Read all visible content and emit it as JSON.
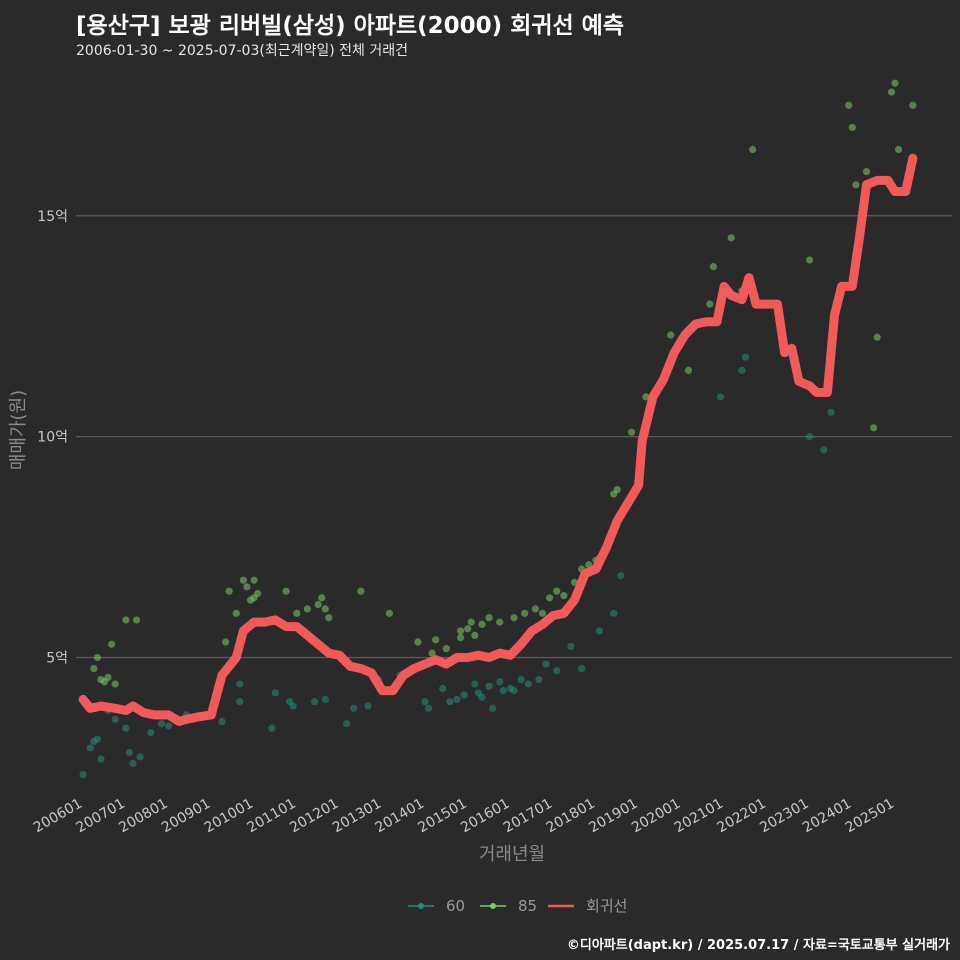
{
  "header": {
    "title": "[용산구] 보광 리버빌(삼성) 아파트(2000) 회귀선 예측",
    "subtitle": "2006-01-30 ~ 2025-07-03(최근계약일) 전체 거래건"
  },
  "caption": "©디아파트(dapt.kr) / 2025.07.17 / 자료=국토교통부 실거래가",
  "colors": {
    "background": "#2b2a2b",
    "grid": "#5a5a5a",
    "series_60": "#2a8a80",
    "series_85": "#7ec86a",
    "regression": "#f05a5a"
  },
  "chart_data": {
    "type": "scatter",
    "xlabel": "거래년월",
    "ylabel": "매매가(원)",
    "x_range": [
      "2006-01",
      "2025-07"
    ],
    "ylim": [
      2,
      18.3
    ],
    "y_ticks": [
      5,
      10,
      15
    ],
    "y_tick_labels": [
      "5억",
      "10억",
      "15억"
    ],
    "x_tick_labels": [
      "200601",
      "200701",
      "200801",
      "200901",
      "201001",
      "201101",
      "201201",
      "201301",
      "201401",
      "201501",
      "201601",
      "201701",
      "201801",
      "201901",
      "202001",
      "202101",
      "202201",
      "202301",
      "202401",
      "202501"
    ],
    "grid": true,
    "legend_position": "bottom",
    "legend": [
      {
        "key": "60",
        "label": "60"
      },
      {
        "key": "85",
        "label": "85"
      },
      {
        "key": "reg",
        "label": "회귀선"
      }
    ],
    "series": [
      {
        "name": "60",
        "points": [
          [
            "2006-01",
            2.35
          ],
          [
            "2006-03",
            2.95
          ],
          [
            "2006-04",
            3.1
          ],
          [
            "2006-05",
            3.15
          ],
          [
            "2006-06",
            2.7
          ],
          [
            "2006-08",
            3.8
          ],
          [
            "2006-10",
            3.6
          ],
          [
            "2007-01",
            3.4
          ],
          [
            "2007-02",
            2.85
          ],
          [
            "2007-03",
            2.6
          ],
          [
            "2007-05",
            2.75
          ],
          [
            "2007-08",
            3.3
          ],
          [
            "2007-11",
            3.5
          ],
          [
            "2008-01",
            3.45
          ],
          [
            "2008-03",
            3.6
          ],
          [
            "2008-06",
            3.7
          ],
          [
            "2009-04",
            3.55
          ],
          [
            "2009-09",
            4.4
          ],
          [
            "2009-09",
            4.0
          ],
          [
            "2010-06",
            3.4
          ],
          [
            "2010-07",
            4.2
          ],
          [
            "2010-11",
            4.0
          ],
          [
            "2010-12",
            3.9
          ],
          [
            "2011-06",
            4.0
          ],
          [
            "2011-09",
            4.05
          ],
          [
            "2012-03",
            3.5
          ],
          [
            "2012-05",
            3.85
          ],
          [
            "2012-09",
            3.9
          ],
          [
            "2012-12",
            4.5
          ],
          [
            "2013-06",
            4.6
          ],
          [
            "2014-01",
            4.0
          ],
          [
            "2014-02",
            3.85
          ],
          [
            "2014-06",
            4.3
          ],
          [
            "2014-08",
            4.0
          ],
          [
            "2014-10",
            4.05
          ],
          [
            "2014-12",
            4.15
          ],
          [
            "2015-03",
            4.4
          ],
          [
            "2015-04",
            4.2
          ],
          [
            "2015-05",
            4.1
          ],
          [
            "2015-07",
            4.35
          ],
          [
            "2015-08",
            3.85
          ],
          [
            "2015-10",
            4.45
          ],
          [
            "2015-11",
            4.25
          ],
          [
            "2016-01",
            4.3
          ],
          [
            "2016-02",
            4.25
          ],
          [
            "2016-04",
            4.5
          ],
          [
            "2016-06",
            4.4
          ],
          [
            "2016-09",
            4.5
          ],
          [
            "2016-11",
            4.85
          ],
          [
            "2017-02",
            4.7
          ],
          [
            "2017-06",
            5.25
          ],
          [
            "2017-09",
            4.75
          ],
          [
            "2018-02",
            5.6
          ],
          [
            "2018-06",
            6.0
          ],
          [
            "2018-08",
            6.85
          ],
          [
            "2020-12",
            10.9
          ],
          [
            "2021-06",
            11.5
          ],
          [
            "2021-07",
            11.8
          ],
          [
            "2023-01",
            10.0
          ],
          [
            "2023-05",
            9.7
          ],
          [
            "2023-07",
            10.55
          ]
        ]
      },
      {
        "name": "85",
        "points": [
          [
            "2006-04",
            4.75
          ],
          [
            "2006-05",
            5.0
          ],
          [
            "2006-06",
            4.5
          ],
          [
            "2006-07",
            4.45
          ],
          [
            "2006-08",
            4.55
          ],
          [
            "2006-09",
            5.3
          ],
          [
            "2006-10",
            4.4
          ],
          [
            "2007-01",
            5.85
          ],
          [
            "2007-04",
            5.85
          ],
          [
            "2009-05",
            5.35
          ],
          [
            "2009-06",
            6.5
          ],
          [
            "2009-08",
            6.0
          ],
          [
            "2009-10",
            6.75
          ],
          [
            "2009-11",
            6.6
          ],
          [
            "2009-12",
            6.3
          ],
          [
            "2010-01",
            6.75
          ],
          [
            "2010-01",
            6.35
          ],
          [
            "2010-02",
            6.45
          ],
          [
            "2010-10",
            6.5
          ],
          [
            "2011-01",
            6.0
          ],
          [
            "2011-04",
            6.1
          ],
          [
            "2011-07",
            6.2
          ],
          [
            "2011-08",
            6.35
          ],
          [
            "2011-09",
            6.1
          ],
          [
            "2011-10",
            5.9
          ],
          [
            "2012-07",
            6.5
          ],
          [
            "2013-03",
            6.0
          ],
          [
            "2013-11",
            5.35
          ],
          [
            "2014-03",
            5.1
          ],
          [
            "2014-04",
            5.4
          ],
          [
            "2014-07",
            5.2
          ],
          [
            "2014-11",
            5.6
          ],
          [
            "2014-11",
            5.45
          ],
          [
            "2015-01",
            5.65
          ],
          [
            "2015-02",
            5.8
          ],
          [
            "2015-03",
            5.5
          ],
          [
            "2015-05",
            5.75
          ],
          [
            "2015-07",
            5.9
          ],
          [
            "2015-10",
            5.8
          ],
          [
            "2016-02",
            5.9
          ],
          [
            "2016-05",
            6.0
          ],
          [
            "2016-08",
            6.1
          ],
          [
            "2016-10",
            6.0
          ],
          [
            "2016-12",
            6.35
          ],
          [
            "2017-02",
            6.5
          ],
          [
            "2017-04",
            6.4
          ],
          [
            "2017-07",
            6.7
          ],
          [
            "2017-09",
            7.0
          ],
          [
            "2017-11",
            7.1
          ],
          [
            "2018-01",
            7.2
          ],
          [
            "2018-02",
            7.25
          ],
          [
            "2018-06",
            8.7
          ],
          [
            "2018-07",
            8.8
          ],
          [
            "2018-11",
            10.1
          ],
          [
            "2019-03",
            10.9
          ],
          [
            "2019-10",
            12.3
          ],
          [
            "2020-03",
            11.5
          ],
          [
            "2020-04",
            12.5
          ],
          [
            "2020-09",
            13.0
          ],
          [
            "2020-10",
            13.85
          ],
          [
            "2021-03",
            14.5
          ],
          [
            "2021-06",
            13.3
          ],
          [
            "2021-09",
            16.5
          ],
          [
            "2022-07",
            12.0
          ],
          [
            "2023-01",
            14.0
          ],
          [
            "2023-12",
            17.5
          ],
          [
            "2024-01",
            17.0
          ],
          [
            "2024-02",
            15.7
          ],
          [
            "2024-05",
            16.0
          ],
          [
            "2024-07",
            10.2
          ],
          [
            "2024-08",
            12.25
          ],
          [
            "2024-12",
            17.8
          ],
          [
            "2025-01",
            18.0
          ],
          [
            "2025-02",
            16.5
          ],
          [
            "2025-06",
            17.5
          ]
        ]
      },
      {
        "name": "회귀선",
        "points": [
          [
            "2006-01",
            4.05
          ],
          [
            "2006-03",
            3.85
          ],
          [
            "2006-06",
            3.9
          ],
          [
            "2006-10",
            3.85
          ],
          [
            "2007-01",
            3.8
          ],
          [
            "2007-03",
            3.9
          ],
          [
            "2007-06",
            3.75
          ],
          [
            "2007-09",
            3.7
          ],
          [
            "2008-01",
            3.7
          ],
          [
            "2008-04",
            3.55
          ],
          [
            "2008-06",
            3.6
          ],
          [
            "2008-09",
            3.65
          ],
          [
            "2009-01",
            3.7
          ],
          [
            "2009-04",
            4.6
          ],
          [
            "2009-08",
            5.0
          ],
          [
            "2009-10",
            5.6
          ],
          [
            "2010-01",
            5.8
          ],
          [
            "2010-04",
            5.8
          ],
          [
            "2010-07",
            5.85
          ],
          [
            "2010-10",
            5.7
          ],
          [
            "2011-01",
            5.7
          ],
          [
            "2011-04",
            5.5
          ],
          [
            "2011-07",
            5.3
          ],
          [
            "2011-10",
            5.1
          ],
          [
            "2012-01",
            5.05
          ],
          [
            "2012-04",
            4.8
          ],
          [
            "2012-07",
            4.75
          ],
          [
            "2012-10",
            4.65
          ],
          [
            "2013-01",
            4.25
          ],
          [
            "2013-04",
            4.25
          ],
          [
            "2013-07",
            4.6
          ],
          [
            "2013-10",
            4.75
          ],
          [
            "2014-01",
            4.85
          ],
          [
            "2014-04",
            4.95
          ],
          [
            "2014-07",
            4.85
          ],
          [
            "2014-10",
            5.0
          ],
          [
            "2015-01",
            5.0
          ],
          [
            "2015-04",
            5.05
          ],
          [
            "2015-07",
            5.0
          ],
          [
            "2015-10",
            5.1
          ],
          [
            "2016-01",
            5.05
          ],
          [
            "2016-04",
            5.3
          ],
          [
            "2016-07",
            5.6
          ],
          [
            "2016-10",
            5.75
          ],
          [
            "2017-01",
            5.95
          ],
          [
            "2017-04",
            6.0
          ],
          [
            "2017-07",
            6.3
          ],
          [
            "2017-10",
            6.9
          ],
          [
            "2018-01",
            7.0
          ],
          [
            "2018-04",
            7.5
          ],
          [
            "2018-07",
            8.1
          ],
          [
            "2018-10",
            8.5
          ],
          [
            "2019-01",
            8.9
          ],
          [
            "2019-02",
            9.9
          ],
          [
            "2019-05",
            10.9
          ],
          [
            "2019-08",
            11.3
          ],
          [
            "2019-11",
            11.9
          ],
          [
            "2020-02",
            12.3
          ],
          [
            "2020-05",
            12.55
          ],
          [
            "2020-08",
            12.6
          ],
          [
            "2020-11",
            12.6
          ],
          [
            "2021-01",
            13.4
          ],
          [
            "2021-03",
            13.2
          ],
          [
            "2021-06",
            13.1
          ],
          [
            "2021-08",
            13.6
          ],
          [
            "2021-10",
            13.0
          ],
          [
            "2022-01",
            13.0
          ],
          [
            "2022-04",
            13.0
          ],
          [
            "2022-06",
            11.9
          ],
          [
            "2022-08",
            12.0
          ],
          [
            "2022-10",
            11.25
          ],
          [
            "2023-01",
            11.15
          ],
          [
            "2023-03",
            11.0
          ],
          [
            "2023-06",
            11.0
          ],
          [
            "2023-08",
            12.75
          ],
          [
            "2023-10",
            13.4
          ],
          [
            "2024-01",
            13.4
          ],
          [
            "2024-03",
            14.5
          ],
          [
            "2024-05",
            15.7
          ],
          [
            "2024-08",
            15.8
          ],
          [
            "2024-11",
            15.8
          ],
          [
            "2025-01",
            15.55
          ],
          [
            "2025-04",
            15.55
          ],
          [
            "2025-06",
            16.3
          ]
        ]
      }
    ]
  }
}
